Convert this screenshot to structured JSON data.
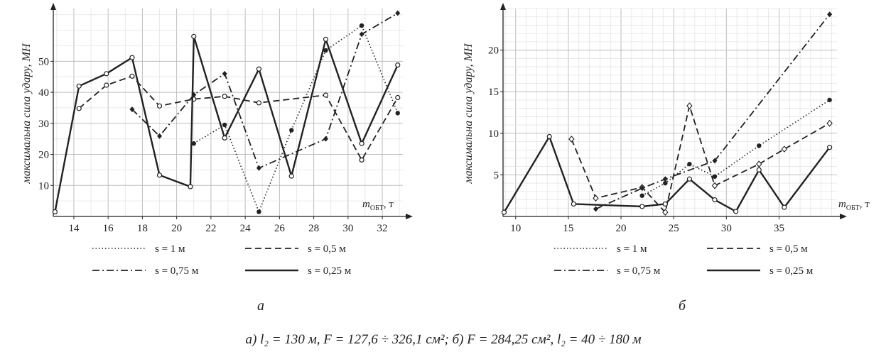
{
  "caption": "а) l₂ = 130 м, F = 127,6 ÷ 326,1 см²;   б) F = 284,25 см², l₂ = 40 ÷ 180 м",
  "chart_data": [
    {
      "id": "a",
      "type": "line",
      "sublabel": "а",
      "ylabel": "максимальна сила удару, МН",
      "xlabel_base": "m",
      "xlabel_sub": "ОБТ",
      "xlabel_unit": ", т",
      "xlim": [
        12.8,
        33.2
      ],
      "ylim": [
        0,
        67
      ],
      "grid": true,
      "xticks": [
        14,
        16,
        18,
        20,
        22,
        24,
        26,
        28,
        30,
        32
      ],
      "yticks": [
        10,
        20,
        30,
        40,
        50
      ],
      "legend_position": "bottom",
      "series": [
        {
          "name": "s = 1 м",
          "dash": "dotted",
          "marker": "dot",
          "x": [
            21.0,
            22.8,
            24.8,
            26.7,
            28.7,
            30.8,
            32.9
          ],
          "y": [
            23.5,
            29.5,
            1.5,
            27.8,
            53.5,
            61.5,
            33.3
          ]
        },
        {
          "name": "s = 0,5 м",
          "dash": "dashed",
          "marker": "open-circle",
          "x": [
            14.3,
            15.9,
            17.4,
            19.0,
            21.0,
            22.8,
            24.8,
            28.7,
            30.8,
            32.9
          ],
          "y": [
            34.8,
            42.3,
            45.2,
            35.6,
            37.8,
            38.7,
            36.6,
            39.1,
            18.2,
            38.3
          ]
        },
        {
          "name": "s = 0,75 м",
          "dash": "dashdot",
          "marker": "diamond",
          "x": [
            17.4,
            19.0,
            21.0,
            22.8,
            24.8,
            28.7,
            30.8,
            32.9
          ],
          "y": [
            34.5,
            25.9,
            39.2,
            46.0,
            15.6,
            25.0,
            58.7,
            65.5
          ]
        },
        {
          "name": "s = 0,25 м",
          "dash": "solid",
          "marker": "open-circle",
          "x": [
            12.9,
            14.3,
            15.9,
            17.4,
            19.0,
            20.8,
            21.0,
            22.8,
            24.8,
            26.7,
            28.7,
            30.8,
            32.9
          ],
          "y": [
            1.5,
            42.0,
            46.0,
            51.2,
            13.3,
            9.6,
            58.0,
            25.3,
            47.5,
            13.0,
            57.1,
            23.5,
            48.8
          ]
        }
      ]
    },
    {
      "id": "b",
      "type": "line",
      "sublabel": "б",
      "ylabel": "максимальна сила удару, МН",
      "xlabel_base": "m",
      "xlabel_sub": "ОБТ",
      "xlabel_unit": ", т",
      "xlim": [
        8.8,
        40.5
      ],
      "ylim": [
        0,
        25
      ],
      "grid": true,
      "xticks": [
        10,
        15,
        20,
        25,
        30,
        35
      ],
      "yticks": [
        5,
        10,
        15,
        20
      ],
      "legend_position": "bottom",
      "series": [
        {
          "name": "s = 1 м",
          "dash": "dotted",
          "marker": "dot",
          "x": [
            22.0,
            24.2,
            26.5,
            28.9,
            33.1,
            39.8
          ],
          "y": [
            2.5,
            4.0,
            6.3,
            4.8,
            8.5,
            14.0
          ]
        },
        {
          "name": "s = 0,5 м",
          "dash": "dashed",
          "marker": "open-diamond",
          "x": [
            15.3,
            17.6,
            22.0,
            24.2,
            26.5,
            28.9,
            33.1,
            35.5,
            39.8
          ],
          "y": [
            9.3,
            2.2,
            3.5,
            0.5,
            13.3,
            3.7,
            6.3,
            8.1,
            11.2
          ]
        },
        {
          "name": "s = 0,75 м",
          "dash": "dashdot",
          "marker": "diamond",
          "x": [
            17.6,
            22.0,
            24.2,
            28.9,
            39.8
          ],
          "y": [
            0.9,
            3.4,
            4.5,
            6.7,
            24.3
          ]
        },
        {
          "name": "s = 0,25 м",
          "dash": "solid",
          "marker": "open-circle",
          "x": [
            8.9,
            13.2,
            15.5,
            22.0,
            24.2,
            26.5,
            28.9,
            30.9,
            33.1,
            35.5,
            39.8
          ],
          "y": [
            0.5,
            9.6,
            1.5,
            1.2,
            1.5,
            4.5,
            2.0,
            0.6,
            5.6,
            1.1,
            8.3
          ]
        }
      ]
    }
  ]
}
